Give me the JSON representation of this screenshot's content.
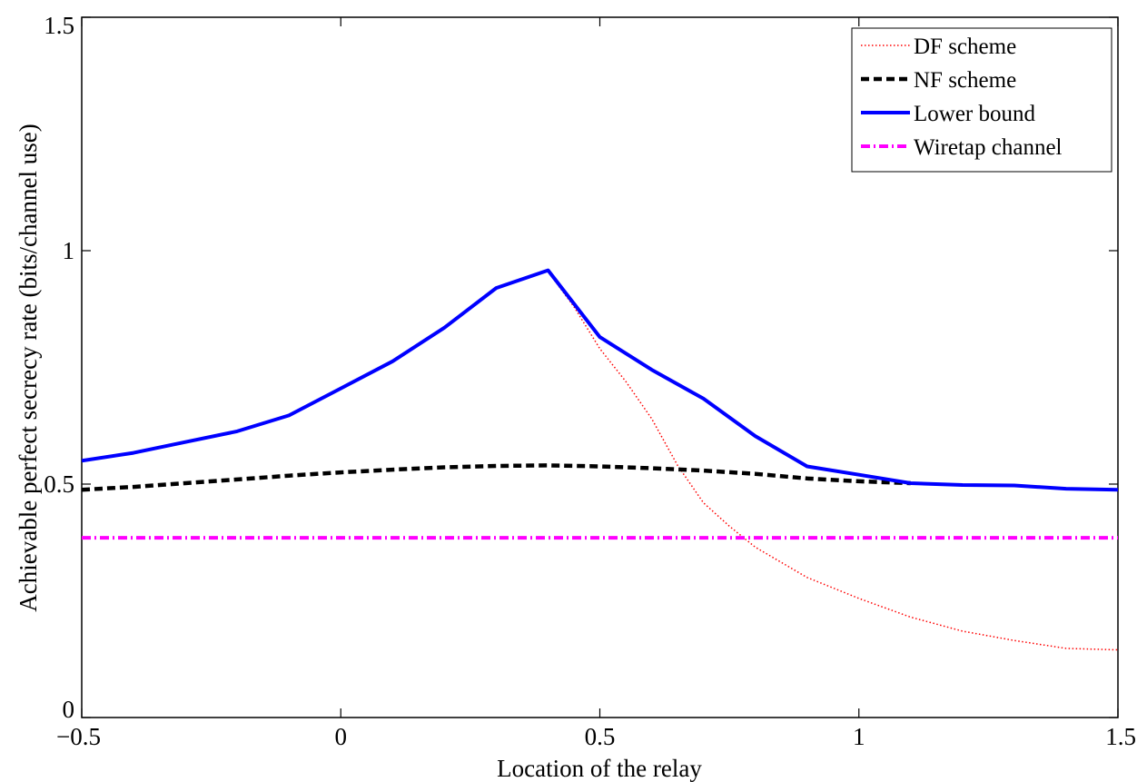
{
  "chart_data": {
    "type": "line",
    "title": "",
    "xlabel": "Location of the relay",
    "ylabel": "Achievable perfect secrecy rate (bits/channel use)",
    "xlim": [
      -0.5,
      1.5
    ],
    "ylim": [
      0,
      1.5
    ],
    "xticks": [
      -0.5,
      0,
      0.5,
      1,
      1.5
    ],
    "xtick_labels": [
      "−0.5",
      "0",
      "0.5",
      "1",
      "1.5"
    ],
    "yticks": [
      0,
      0.5,
      1,
      1.5
    ],
    "ytick_labels": [
      "0",
      "0.5",
      "1",
      "1.5"
    ],
    "grid": false,
    "legend_position": "top-right",
    "series": [
      {
        "name": "DF scheme",
        "color": "#ff0000",
        "style": "dotted",
        "x": [
          0.4,
          0.45,
          0.5,
          0.55,
          0.6,
          0.65,
          0.7,
          0.75,
          0.8,
          0.9,
          1.0,
          1.1,
          1.2,
          1.3,
          1.4,
          1.5
        ],
        "y": [
          0.955,
          0.88,
          0.79,
          0.72,
          0.64,
          0.54,
          0.46,
          0.41,
          0.365,
          0.3,
          0.255,
          0.215,
          0.185,
          0.165,
          0.148,
          0.145
        ]
      },
      {
        "name": "NF scheme",
        "color": "#000000",
        "style": "dashed",
        "x": [
          -0.5,
          -0.4,
          -0.3,
          -0.2,
          -0.1,
          0.0,
          0.1,
          0.2,
          0.3,
          0.4,
          0.5,
          0.6,
          0.7,
          0.8,
          0.9,
          1.0,
          1.1
        ],
        "y": [
          0.488,
          0.494,
          0.502,
          0.51,
          0.518,
          0.525,
          0.531,
          0.536,
          0.539,
          0.54,
          0.538,
          0.534,
          0.529,
          0.522,
          0.512,
          0.506,
          0.502
        ]
      },
      {
        "name": "Lower bound",
        "color": "#0000ff",
        "style": "solid",
        "x": [
          -0.5,
          -0.4,
          -0.3,
          -0.2,
          -0.1,
          0.0,
          0.1,
          0.2,
          0.3,
          0.4,
          0.5,
          0.6,
          0.7,
          0.8,
          0.9,
          1.0,
          1.1,
          1.2,
          1.3,
          1.4,
          1.5
        ],
        "y": [
          0.55,
          0.567,
          0.59,
          0.613,
          0.647,
          0.705,
          0.763,
          0.835,
          0.92,
          0.958,
          0.815,
          0.745,
          0.683,
          0.603,
          0.538,
          0.52,
          0.502,
          0.498,
          0.497,
          0.49,
          0.488
        ]
      },
      {
        "name": "Wiretap channel",
        "color": "#ff00ff",
        "style": "dashdot",
        "x": [
          -0.5,
          1.5
        ],
        "y": [
          0.385,
          0.385
        ]
      }
    ]
  }
}
